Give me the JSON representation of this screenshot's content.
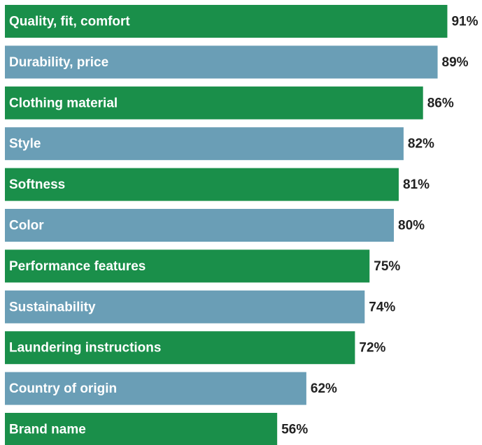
{
  "chart_data": {
    "type": "barh",
    "categories": [
      "Quality, fit, comfort",
      "Durability, price",
      "Clothing material",
      "Style",
      "Softness",
      "Color",
      "Performance features",
      "Sustainability",
      "Laundering instructions",
      "Country of origin",
      "Brand name"
    ],
    "values": [
      91,
      89,
      86,
      82,
      81,
      80,
      75,
      74,
      72,
      62,
      56
    ],
    "value_labels": [
      "91%",
      "89%",
      "86%",
      "82%",
      "81%",
      "80%",
      "75%",
      "74%",
      "72%",
      "62%",
      "56%"
    ],
    "colors": [
      "#1a8f4a",
      "#6a9eb6",
      "#1a8f4a",
      "#6a9eb6",
      "#1a8f4a",
      "#6a9eb6",
      "#1a8f4a",
      "#6a9eb6",
      "#1a8f4a",
      "#6a9eb6",
      "#1a8f4a"
    ]
  }
}
